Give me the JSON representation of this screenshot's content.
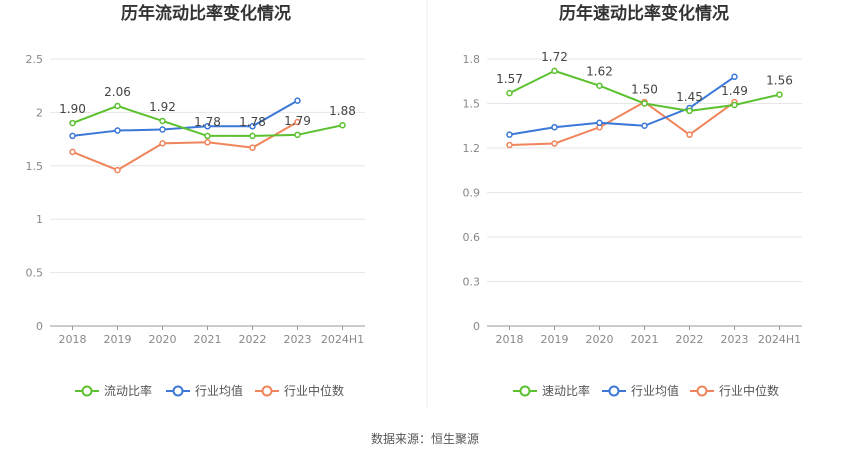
{
  "source": "数据来源：恒生聚源",
  "chart_data": [
    {
      "type": "line",
      "title": "历年流动比率变化情况",
      "categories": [
        "2018",
        "2019",
        "2020",
        "2021",
        "2022",
        "2023",
        "2024H1"
      ],
      "ylim": [
        0,
        2.5
      ],
      "yticks": [
        "0",
        "0.5",
        "1",
        "1.5",
        "2",
        "2.5"
      ],
      "grid": true,
      "legend": "bottom",
      "series": [
        {
          "name": "流动比率",
          "color": "#5cc12f",
          "labels": true,
          "values": [
            1.9,
            2.06,
            1.92,
            1.78,
            1.78,
            1.79,
            1.88
          ],
          "value_labels": [
            "1.90",
            "2.06",
            "1.92",
            "1.78",
            "1.78",
            "1.79",
            "1.88"
          ]
        },
        {
          "name": "行业均值",
          "color": "#3b78d8",
          "labels": false,
          "values": [
            1.78,
            1.83,
            1.84,
            1.87,
            1.87,
            2.11,
            null
          ]
        },
        {
          "name": "行业中位数",
          "color": "#f0845a",
          "labels": false,
          "values": [
            1.63,
            1.46,
            1.71,
            1.72,
            1.67,
            1.91,
            null
          ]
        }
      ]
    },
    {
      "type": "line",
      "title": "历年速动比率变化情况",
      "categories": [
        "2018",
        "2019",
        "2020",
        "2021",
        "2022",
        "2023",
        "2024H1"
      ],
      "ylim": [
        0,
        1.8
      ],
      "yticks": [
        "0",
        "0.3",
        "0.6",
        "0.9",
        "1.2",
        "1.5",
        "1.8"
      ],
      "grid": true,
      "legend": "bottom",
      "series": [
        {
          "name": "速动比率",
          "color": "#5cc12f",
          "labels": true,
          "values": [
            1.57,
            1.72,
            1.62,
            1.5,
            1.45,
            1.49,
            1.56
          ],
          "value_labels": [
            "1.57",
            "1.72",
            "1.62",
            "1.50",
            "1.45",
            "1.49",
            "1.56"
          ]
        },
        {
          "name": "行业均值",
          "color": "#3b78d8",
          "labels": false,
          "values": [
            1.29,
            1.34,
            1.37,
            1.35,
            1.47,
            1.68,
            null
          ]
        },
        {
          "name": "行业中位数",
          "color": "#f0845a",
          "labels": false,
          "values": [
            1.22,
            1.23,
            1.34,
            1.51,
            1.29,
            1.51,
            null
          ]
        }
      ]
    }
  ]
}
